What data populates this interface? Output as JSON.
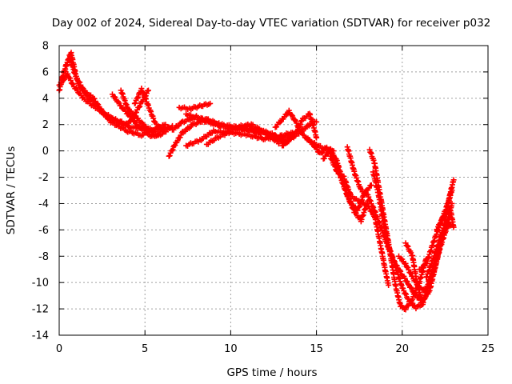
{
  "chart_data": {
    "type": "scatter",
    "title": "Day 002 of 2024, Sidereal Day-to-day VTEC variation (SDTVAR) for receiver p032",
    "xlabel": "GPS time / hours",
    "ylabel": "SDTVAR / TECUs",
    "xlim": [
      0,
      25
    ],
    "ylim": [
      -14,
      8
    ],
    "xticks": [
      0,
      5,
      10,
      15,
      20,
      25
    ],
    "yticks": [
      -14,
      -12,
      -10,
      -8,
      -6,
      -4,
      -2,
      0,
      2,
      4,
      6,
      8
    ],
    "grid": true,
    "marker": "+",
    "color": "#ff0000",
    "tracks": [
      [
        [
          0.0,
          4.6
        ],
        [
          0.3,
          6.0
        ],
        [
          0.6,
          7.2
        ],
        [
          0.8,
          6.3
        ],
        [
          1.2,
          4.8
        ],
        [
          2.0,
          4.0
        ],
        [
          2.6,
          2.8
        ],
        [
          3.4,
          2.2
        ],
        [
          4.2,
          1.8
        ],
        [
          5.0,
          1.7
        ],
        [
          5.8,
          1.6
        ],
        [
          6.4,
          1.8
        ]
      ],
      [
        [
          0.1,
          5.2
        ],
        [
          0.4,
          6.5
        ],
        [
          0.7,
          7.4
        ],
        [
          1.0,
          5.6
        ],
        [
          1.6,
          4.2
        ],
        [
          2.4,
          3.2
        ],
        [
          3.0,
          2.2
        ],
        [
          4.0,
          1.5
        ],
        [
          4.8,
          1.2
        ],
        [
          5.5,
          1.6
        ],
        [
          6.2,
          2.0
        ]
      ],
      [
        [
          0.0,
          5.0
        ],
        [
          0.5,
          5.8
        ],
        [
          0.8,
          5.0
        ],
        [
          1.4,
          4.0
        ],
        [
          2.2,
          3.2
        ],
        [
          3.2,
          2.4
        ],
        [
          4.0,
          2.0
        ],
        [
          4.5,
          3.0
        ],
        [
          5.2,
          4.6
        ]
      ],
      [
        [
          3.1,
          4.3
        ],
        [
          3.6,
          3.4
        ],
        [
          4.2,
          2.5
        ],
        [
          4.8,
          1.6
        ],
        [
          5.4,
          1.1
        ],
        [
          6.0,
          1.3
        ],
        [
          6.6,
          1.9
        ]
      ],
      [
        [
          3.6,
          4.6
        ],
        [
          4.0,
          3.2
        ],
        [
          4.6,
          2.4
        ],
        [
          5.2,
          1.6
        ],
        [
          5.8,
          1.2
        ]
      ],
      [
        [
          4.4,
          3.6
        ],
        [
          4.8,
          4.7
        ],
        [
          5.2,
          3.4
        ],
        [
          5.6,
          2.1
        ],
        [
          6.0,
          1.6
        ]
      ],
      [
        [
          6.4,
          -0.4
        ],
        [
          6.8,
          0.6
        ],
        [
          7.2,
          1.4
        ],
        [
          7.8,
          2.0
        ],
        [
          8.6,
          2.4
        ],
        [
          9.4,
          2.0
        ],
        [
          10.4,
          1.8
        ],
        [
          11.4,
          1.5
        ],
        [
          12.4,
          1.2
        ],
        [
          13.0,
          1.0
        ]
      ],
      [
        [
          6.6,
          1.6
        ],
        [
          7.2,
          2.2
        ],
        [
          8.0,
          2.6
        ],
        [
          8.8,
          2.2
        ],
        [
          9.6,
          1.8
        ],
        [
          10.6,
          1.6
        ],
        [
          11.6,
          1.6
        ],
        [
          12.6,
          1.2
        ]
      ],
      [
        [
          7.0,
          3.3
        ],
        [
          7.6,
          3.2
        ],
        [
          8.2,
          3.4
        ],
        [
          8.8,
          3.6
        ]
      ],
      [
        [
          7.4,
          2.8
        ],
        [
          8.4,
          2.3
        ],
        [
          9.2,
          2.0
        ],
        [
          10.2,
          1.8
        ],
        [
          11.2,
          2.0
        ],
        [
          12.0,
          1.4
        ],
        [
          12.8,
          0.6
        ],
        [
          13.4,
          1.2
        ]
      ],
      [
        [
          7.4,
          0.4
        ],
        [
          8.2,
          0.8
        ],
        [
          9.0,
          1.5
        ],
        [
          10.0,
          1.4
        ],
        [
          11.0,
          1.2
        ],
        [
          12.0,
          0.9
        ],
        [
          12.8,
          1.1
        ],
        [
          13.6,
          1.4
        ]
      ],
      [
        [
          8.6,
          0.5
        ],
        [
          9.2,
          1.0
        ],
        [
          10.2,
          1.6
        ],
        [
          11.0,
          1.9
        ],
        [
          11.6,
          1.4
        ]
      ],
      [
        [
          12.6,
          1.8
        ],
        [
          13.0,
          2.4
        ],
        [
          13.4,
          3.0
        ],
        [
          13.8,
          2.2
        ],
        [
          14.2,
          1.2
        ],
        [
          14.8,
          0.6
        ],
        [
          15.4,
          0.2
        ],
        [
          16.0,
          0.0
        ]
      ],
      [
        [
          12.8,
          1.0
        ],
        [
          13.2,
          0.6
        ],
        [
          13.8,
          1.4
        ],
        [
          14.2,
          2.4
        ],
        [
          14.6,
          2.8
        ],
        [
          14.8,
          2.0
        ],
        [
          15.0,
          1.0
        ]
      ],
      [
        [
          13.0,
          0.4
        ],
        [
          13.6,
          1.0
        ],
        [
          14.2,
          1.6
        ],
        [
          14.8,
          2.2
        ],
        [
          15.0,
          2.2
        ]
      ],
      [
        [
          14.4,
          1.0
        ],
        [
          14.8,
          0.5
        ],
        [
          15.2,
          -0.2
        ],
        [
          15.6,
          0.2
        ],
        [
          16.0,
          -0.4
        ],
        [
          16.4,
          -2.0
        ],
        [
          16.8,
          -3.4
        ],
        [
          17.2,
          -4.6
        ],
        [
          17.6,
          -5.3
        ],
        [
          18.0,
          -3.8
        ]
      ],
      [
        [
          15.4,
          -0.6
        ],
        [
          15.8,
          0.1
        ],
        [
          16.2,
          -0.8
        ],
        [
          16.6,
          -2.6
        ],
        [
          17.0,
          -4.0
        ],
        [
          17.4,
          -4.5
        ],
        [
          17.8,
          -3.2
        ],
        [
          18.2,
          -2.6
        ]
      ],
      [
        [
          15.8,
          -0.4
        ],
        [
          16.2,
          -1.6
        ],
        [
          16.6,
          -2.0
        ],
        [
          17.0,
          -3.4
        ],
        [
          17.4,
          -3.8
        ],
        [
          18.0,
          -4.2
        ],
        [
          18.4,
          -5.0
        ],
        [
          18.8,
          -7.6
        ],
        [
          19.0,
          -9.0
        ],
        [
          19.2,
          -10.2
        ]
      ],
      [
        [
          16.8,
          0.3
        ],
        [
          17.2,
          -1.6
        ],
        [
          17.6,
          -3.0
        ],
        [
          18.0,
          -3.4
        ],
        [
          18.4,
          -4.6
        ],
        [
          18.8,
          -6.0
        ],
        [
          19.2,
          -7.4
        ],
        [
          19.6,
          -8.6
        ],
        [
          20.0,
          -9.4
        ],
        [
          20.4,
          -10.2
        ],
        [
          20.8,
          -11.0
        ],
        [
          21.2,
          -11.5
        ]
      ],
      [
        [
          18.1,
          0.1
        ],
        [
          18.4,
          -1.0
        ],
        [
          18.8,
          -4.0
        ],
        [
          19.2,
          -7.0
        ],
        [
          19.6,
          -10.2
        ],
        [
          19.9,
          -11.8
        ],
        [
          20.2,
          -12.0
        ],
        [
          20.6,
          -11.2
        ],
        [
          21.0,
          -10.0
        ],
        [
          21.4,
          -8.2
        ]
      ],
      [
        [
          18.3,
          -1.6
        ],
        [
          18.6,
          -3.2
        ],
        [
          18.9,
          -5.4
        ],
        [
          19.2,
          -7.2
        ],
        [
          19.6,
          -8.8
        ],
        [
          20.0,
          -10.4
        ],
        [
          20.4,
          -11.4
        ],
        [
          20.8,
          -11.9
        ],
        [
          21.2,
          -11.6
        ],
        [
          21.6,
          -9.6
        ],
        [
          22.0,
          -8.0
        ],
        [
          22.4,
          -6.4
        ],
        [
          22.8,
          -5.0
        ]
      ],
      [
        [
          19.8,
          -8.0
        ],
        [
          20.2,
          -8.6
        ],
        [
          20.6,
          -9.6
        ],
        [
          21.0,
          -10.4
        ],
        [
          21.4,
          -10.6
        ],
        [
          21.8,
          -9.4
        ],
        [
          22.2,
          -7.4
        ],
        [
          22.6,
          -5.8
        ],
        [
          22.9,
          -5.6
        ]
      ],
      [
        [
          20.2,
          -7.0
        ],
        [
          20.6,
          -8.0
        ],
        [
          20.8,
          -9.6
        ],
        [
          21.0,
          -10.8
        ],
        [
          21.2,
          -11.4
        ],
        [
          21.6,
          -10.6
        ],
        [
          22.0,
          -8.4
        ],
        [
          22.4,
          -6.0
        ],
        [
          22.8,
          -3.2
        ],
        [
          23.0,
          -2.2
        ]
      ],
      [
        [
          21.0,
          -9.0
        ],
        [
          21.4,
          -8.6
        ],
        [
          21.8,
          -7.0
        ],
        [
          22.2,
          -5.6
        ],
        [
          22.6,
          -4.2
        ],
        [
          22.9,
          -3.0
        ]
      ],
      [
        [
          21.4,
          -9.6
        ],
        [
          21.8,
          -8.2
        ],
        [
          22.2,
          -6.6
        ],
        [
          22.6,
          -5.4
        ],
        [
          22.9,
          -4.0
        ]
      ],
      [
        [
          22.0,
          -6.0
        ],
        [
          22.4,
          -5.0
        ],
        [
          22.8,
          -4.4
        ],
        [
          23.0,
          -5.8
        ]
      ]
    ]
  }
}
